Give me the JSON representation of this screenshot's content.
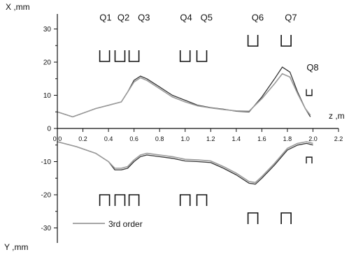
{
  "chart_data": {
    "type": "line",
    "xlabel": "z ,m",
    "ylabel_top": "X ,mm",
    "ylabel_bottom": "Y ,mm",
    "x_range": [
      0.0,
      2.2
    ],
    "y_range": [
      -36,
      36
    ],
    "x_ticks": [
      "0.0",
      "0.2",
      "0.4",
      "0.6",
      "0.8",
      "1.0",
      "1.2",
      "1.4",
      "1.6",
      "1.8",
      "2.0",
      "2.2"
    ],
    "x_tick_values": [
      0.0,
      0.2,
      0.4,
      0.6,
      0.8,
      1.0,
      1.2,
      1.4,
      1.6,
      1.8,
      2.0,
      2.2
    ],
    "y_ticks": [
      "30",
      "20",
      "10",
      "0",
      "-10",
      "-20",
      "-30"
    ],
    "y_tick_values": [
      30,
      20,
      10,
      0,
      -10,
      -20,
      -30
    ],
    "grid": false,
    "legend_position": "bottom-left",
    "series": [
      {
        "name": "",
        "plane": "X",
        "color": "#333333",
        "x": [
          0.0,
          0.12,
          0.3,
          0.4,
          0.45,
          0.5,
          0.55,
          0.6,
          0.65,
          0.7,
          0.8,
          0.9,
          1.0,
          1.1,
          1.2,
          1.3,
          1.4,
          1.5,
          1.6,
          1.7,
          1.76,
          1.82,
          1.88,
          1.94,
          1.98
        ],
        "y": [
          5.0,
          3.5,
          6.0,
          7.0,
          7.5,
          8.0,
          11.0,
          14.5,
          15.8,
          15.0,
          12.5,
          10.0,
          8.5,
          7.0,
          6.3,
          5.8,
          5.2,
          5.0,
          9.5,
          15.0,
          18.5,
          17.0,
          11.0,
          6.0,
          3.5
        ]
      },
      {
        "name": "3rd order",
        "plane": "X",
        "color": "#9a9a9a",
        "x": [
          0.0,
          0.12,
          0.3,
          0.4,
          0.45,
          0.5,
          0.55,
          0.6,
          0.65,
          0.7,
          0.8,
          0.9,
          1.0,
          1.1,
          1.2,
          1.3,
          1.4,
          1.5,
          1.6,
          1.7,
          1.76,
          1.82,
          1.88,
          1.94,
          1.98
        ],
        "y": [
          5.0,
          3.5,
          6.0,
          7.0,
          7.5,
          8.0,
          11.0,
          14.0,
          15.3,
          14.5,
          12.0,
          9.5,
          8.0,
          6.8,
          6.2,
          5.7,
          5.3,
          5.2,
          9.0,
          13.5,
          16.5,
          15.5,
          10.5,
          6.0,
          4.0
        ]
      },
      {
        "name": "",
        "plane": "Y",
        "color": "#333333",
        "x": [
          0.0,
          0.15,
          0.3,
          0.4,
          0.45,
          0.5,
          0.55,
          0.6,
          0.65,
          0.7,
          0.8,
          0.9,
          1.0,
          1.1,
          1.2,
          1.3,
          1.4,
          1.5,
          1.55,
          1.6,
          1.7,
          1.8,
          1.88,
          1.95,
          2.0
        ],
        "y": [
          -4.0,
          -5.5,
          -7.5,
          -10.0,
          -12.5,
          -12.5,
          -12.0,
          -10.0,
          -8.5,
          -8.0,
          -8.5,
          -9.0,
          -9.8,
          -10.0,
          -10.3,
          -12.0,
          -14.0,
          -16.5,
          -16.8,
          -15.0,
          -11.0,
          -6.5,
          -5.0,
          -4.5,
          -5.0
        ]
      },
      {
        "name": "3rd order",
        "plane": "Y",
        "color": "#9a9a9a",
        "x": [
          0.0,
          0.15,
          0.3,
          0.4,
          0.45,
          0.5,
          0.55,
          0.6,
          0.65,
          0.7,
          0.8,
          0.9,
          1.0,
          1.1,
          1.2,
          1.3,
          1.4,
          1.5,
          1.55,
          1.6,
          1.7,
          1.8,
          1.88,
          1.95,
          2.0
        ],
        "y": [
          -4.0,
          -5.5,
          -7.5,
          -10.0,
          -12.0,
          -12.0,
          -11.5,
          -9.5,
          -8.0,
          -7.5,
          -8.0,
          -8.5,
          -9.3,
          -9.5,
          -9.8,
          -11.5,
          -13.5,
          -16.0,
          -16.3,
          -14.5,
          -10.5,
          -6.0,
          -4.5,
          -4.0,
          -4.5
        ]
      }
    ],
    "legend": [
      {
        "label": "3rd order",
        "color": "#9a9a9a"
      }
    ],
    "annotations": {
      "labels": [
        {
          "text": "Q1",
          "x": 0.33,
          "y": 32.5
        },
        {
          "text": "Q2",
          "x": 0.47,
          "y": 32.5
        },
        {
          "text": "Q3",
          "x": 0.63,
          "y": 32.5
        },
        {
          "text": "Q4",
          "x": 0.96,
          "y": 32.5
        },
        {
          "text": "Q5",
          "x": 1.12,
          "y": 32.5
        },
        {
          "text": "Q6",
          "x": 1.52,
          "y": 32.5
        },
        {
          "text": "Q7",
          "x": 1.78,
          "y": 32.5
        },
        {
          "text": "Q8",
          "x": 1.95,
          "y": 17.5
        }
      ],
      "quad_x_positions": [
        0.37,
        0.49,
        0.6,
        1.0,
        1.13
      ],
      "quad_xy_positions": [
        1.53,
        1.79
      ],
      "q8_x": 1.97,
      "q8_u_y": 11,
      "q8_n_y": -9.5
    }
  }
}
